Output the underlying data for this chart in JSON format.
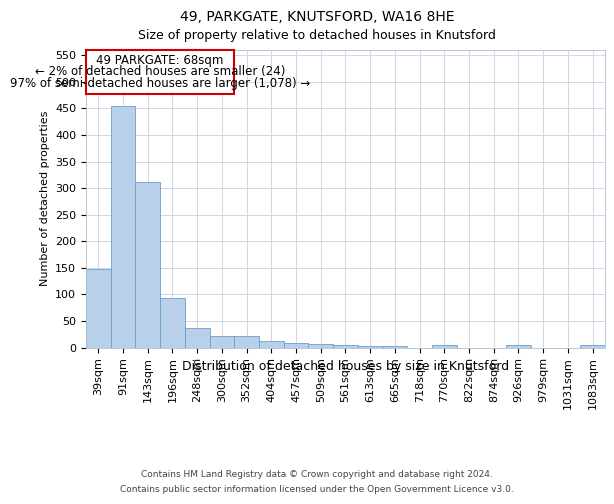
{
  "title1": "49, PARKGATE, KNUTSFORD, WA16 8HE",
  "title2": "Size of property relative to detached houses in Knutsford",
  "xlabel": "Distribution of detached houses by size in Knutsford",
  "ylabel": "Number of detached properties",
  "categories": [
    "39sqm",
    "91sqm",
    "143sqm",
    "196sqm",
    "248sqm",
    "300sqm",
    "352sqm",
    "404sqm",
    "457sqm",
    "509sqm",
    "561sqm",
    "613sqm",
    "665sqm",
    "718sqm",
    "770sqm",
    "822sqm",
    "874sqm",
    "926sqm",
    "979sqm",
    "1031sqm",
    "1083sqm"
  ],
  "values": [
    148,
    455,
    312,
    93,
    37,
    22,
    22,
    13,
    8,
    7,
    4,
    3,
    2,
    0,
    4,
    0,
    0,
    4,
    0,
    0,
    4
  ],
  "bar_color": "#b8d0ea",
  "bar_edge_color": "#6aa0c8",
  "annotation_title": "49 PARKGATE: 68sqm",
  "annotation_line1": "← 2% of detached houses are smaller (24)",
  "annotation_line2": "97% of semi-detached houses are larger (1,078) →",
  "annotation_box_color": "#ffffff",
  "annotation_box_edge_color": "#cc0000",
  "ylim": [
    0,
    560
  ],
  "yticks": [
    0,
    50,
    100,
    150,
    200,
    250,
    300,
    350,
    400,
    450,
    500,
    550
  ],
  "footnote1": "Contains HM Land Registry data © Crown copyright and database right 2024.",
  "footnote2": "Contains public sector information licensed under the Open Government Licence v3.0.",
  "bg_color": "#ffffff",
  "grid_color": "#d0d8e8",
  "title1_fontsize": 10,
  "title2_fontsize": 9,
  "xlabel_fontsize": 9,
  "ylabel_fontsize": 8,
  "tick_fontsize": 8,
  "footnote_fontsize": 6.5
}
